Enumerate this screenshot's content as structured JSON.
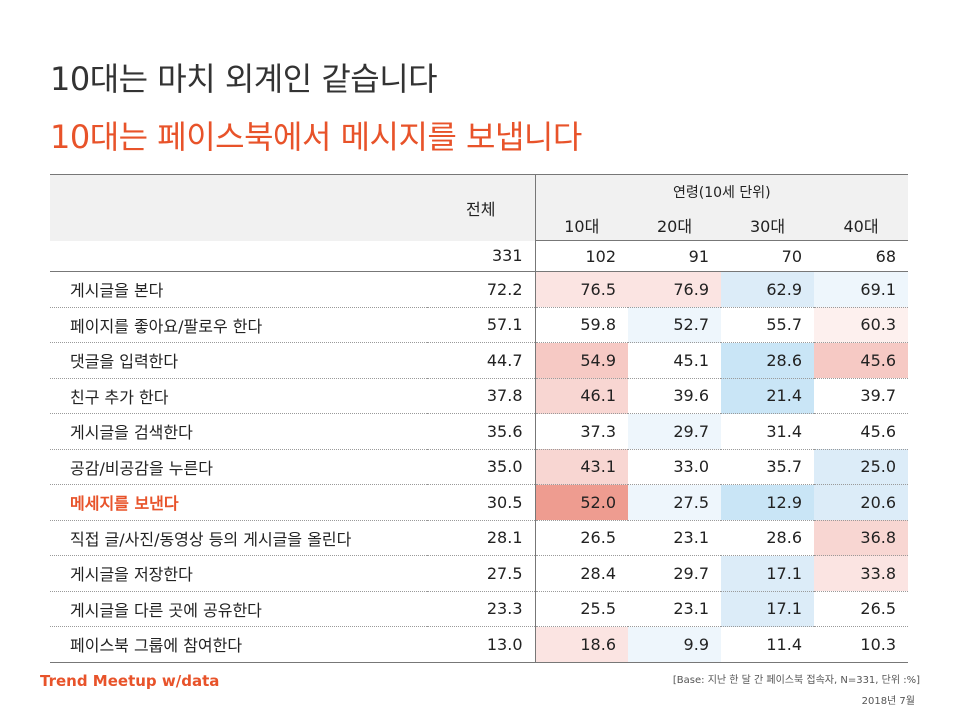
{
  "title_line1": "10대는 마치 외계인 같습니다",
  "title_line2": "10대는 페이스북에서 메시지를 보냅니다",
  "table": {
    "total_label": "전체",
    "age_group_label": "연령(10세 단위)",
    "age_columns": [
      "10대",
      "20대",
      "30대",
      "40대"
    ],
    "base_counts": [
      "331",
      "102",
      "91",
      "70",
      "68"
    ]
  },
  "chart_data": {
    "type": "table",
    "columns": [
      "전체",
      "10대",
      "20대",
      "30대",
      "40대"
    ],
    "rows": [
      {
        "label": "게시글을 본다",
        "values": [
          "72.2",
          "76.5",
          "76.9",
          "62.9",
          "69.1"
        ],
        "highlight": false
      },
      {
        "label": "페이지를 좋아요/팔로우 한다",
        "values": [
          "57.1",
          "59.8",
          "52.7",
          "55.7",
          "60.3"
        ],
        "highlight": false
      },
      {
        "label": "댓글을 입력한다",
        "values": [
          "44.7",
          "54.9",
          "45.1",
          "28.6",
          "45.6"
        ],
        "highlight": false
      },
      {
        "label": "친구 추가 한다",
        "values": [
          "37.8",
          "46.1",
          "39.6",
          "21.4",
          "39.7"
        ],
        "highlight": false
      },
      {
        "label": "게시글을 검색한다",
        "values": [
          "35.6",
          "37.3",
          "29.7",
          "31.4",
          "45.6"
        ],
        "highlight": false
      },
      {
        "label": "공감/비공감을 누른다",
        "values": [
          "35.0",
          "43.1",
          "33.0",
          "35.7",
          "25.0"
        ],
        "highlight": false
      },
      {
        "label": "메세지를 보낸다",
        "values": [
          "30.5",
          "52.0",
          "27.5",
          "12.9",
          "20.6"
        ],
        "highlight": true
      },
      {
        "label": "직접 글/사진/동영상 등의 게시글을 올린다",
        "values": [
          "28.1",
          "26.5",
          "23.1",
          "28.6",
          "36.8"
        ],
        "highlight": false
      },
      {
        "label": "게시글을 저장한다",
        "values": [
          "27.5",
          "28.4",
          "29.7",
          "17.1",
          "33.8"
        ],
        "highlight": false
      },
      {
        "label": "게시글을 다른 곳에 공유한다",
        "values": [
          "23.3",
          "25.5",
          "23.1",
          "17.1",
          "26.5"
        ],
        "highlight": false
      },
      {
        "label": "페이스북 그룹에 참여한다",
        "values": [
          "13.0",
          "18.6",
          "9.9",
          "11.4",
          "10.3"
        ],
        "highlight": false
      }
    ],
    "cell_colors": [
      [
        null,
        "#fbe4e2",
        "#fbe4e2",
        "#dcecf8",
        "#eef6fc"
      ],
      [
        null,
        null,
        "#eef6fc",
        null,
        "#fdf0ee"
      ],
      [
        null,
        "#f6c9c4",
        null,
        "#c9e5f6",
        "#f6c9c4"
      ],
      [
        null,
        "#f8d6d2",
        null,
        "#c9e5f6",
        null
      ],
      [
        null,
        null,
        "#eef6fc",
        null,
        null
      ],
      [
        null,
        "#f8d6d2",
        null,
        null,
        "#dcecf8"
      ],
      [
        null,
        "#ee9c90",
        "#eef6fc",
        "#c9e5f6",
        "#dcecf8"
      ],
      [
        null,
        null,
        null,
        null,
        "#f8d6d2"
      ],
      [
        null,
        null,
        null,
        "#dcecf8",
        "#fbe4e2"
      ],
      [
        null,
        null,
        null,
        "#dcecf8",
        null
      ],
      [
        null,
        "#fbe4e2",
        "#eef6fc",
        null,
        null
      ]
    ]
  },
  "footer": {
    "brand": "Trend Meetup ",
    "brand_suffix": "w/data",
    "base_note": "[Base:  지난 한 달 간 페이스북 접속자, N=331, 단위 :%]",
    "date": "2018년 7월"
  },
  "colors": {
    "accent": "#e8532a",
    "header_gray": "#f1f1f1"
  }
}
